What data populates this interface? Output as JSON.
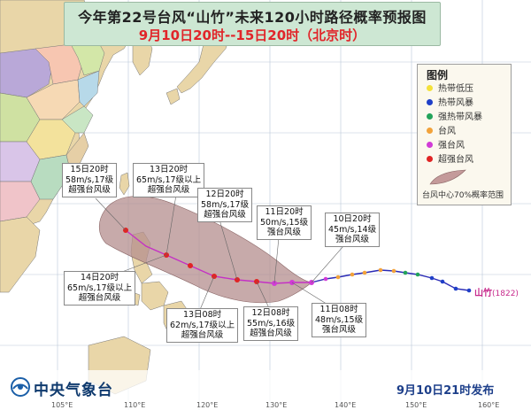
{
  "header": {
    "title": "今年第22号台风“山竹”未来120小时路径概率预报图",
    "subtitle": "9月10日20时--15日20时（北京时）"
  },
  "legend": {
    "title": "图例",
    "items": [
      {
        "label": "热带低压",
        "color": "#f4e13a"
      },
      {
        "label": "热带风暴",
        "color": "#1f3fc8"
      },
      {
        "label": "强热带风暴",
        "color": "#22a35a"
      },
      {
        "label": "台风",
        "color": "#f2a23a"
      },
      {
        "label": "强台风",
        "color": "#d13bd6"
      },
      {
        "label": "超强台风",
        "color": "#e02424"
      }
    ],
    "probability_label": "台风中心70%概率范围",
    "probability_color": "#c49a9a"
  },
  "callouts": [
    {
      "time": "15日20时",
      "line2": "58m/s,17级",
      "line3": "超强台风级"
    },
    {
      "time": "13日20时",
      "line2": "65m/s,17级以上",
      "line3": "超强台风级"
    },
    {
      "time": "12日20时",
      "line2": "58m/s,17级",
      "line3": "超强台风级"
    },
    {
      "time": "11日20时",
      "line2": "50m/s,15级",
      "line3": "强台风级"
    },
    {
      "time": "10日20时",
      "line2": "45m/s,14级",
      "line3": "强台风级"
    },
    {
      "time": "14日20时",
      "line2": "65m/s,17级以上",
      "line3": "超强台风级"
    },
    {
      "time": "13日08时",
      "line2": "62m/s,17级以上",
      "line3": "超强台风级"
    },
    {
      "time": "12日08时",
      "line2": "55m/s,16级",
      "line3": "超强台风级"
    },
    {
      "time": "11日08时",
      "line2": "48m/s,15级",
      "line3": "强台风级"
    }
  ],
  "storm": {
    "name": "山竹",
    "code": "(1822)"
  },
  "footer": {
    "agency": "中央气象台",
    "issued": "9月10日21时发布"
  },
  "axis_labels": [
    "105°E",
    "110°E",
    "120°E",
    "130°E",
    "140°E",
    "150°E",
    "160°E"
  ]
}
